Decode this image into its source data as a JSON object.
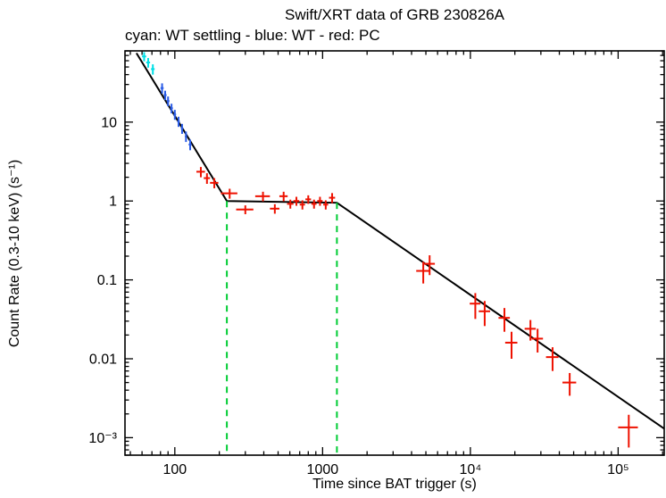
{
  "chart_data": {
    "type": "scatter",
    "title": "Swift/XRT data of GRB 230826A",
    "subtitle": "cyan: WT settling - blue: WT - red: PC",
    "xlabel": "Time since BAT trigger (s)",
    "ylabel": "Count Rate (0.3-10 keV) (s⁻¹)",
    "xscale": "log",
    "yscale": "log",
    "xlim": [
      46,
      205000
    ],
    "ylim": [
      0.0006,
      80
    ],
    "grid": false,
    "legend_position": "subtitle-text",
    "x_axis": {
      "ticks": [
        {
          "value": 100,
          "label": "100"
        },
        {
          "value": 1000,
          "label": "1000"
        },
        {
          "value": 10000,
          "label": "10⁴"
        },
        {
          "value": 100000,
          "label": "10⁵"
        }
      ]
    },
    "y_axis": {
      "ticks": [
        {
          "value": 10,
          "label": "10"
        },
        {
          "value": 1,
          "label": "1"
        },
        {
          "value": 0.1,
          "label": "0.1"
        },
        {
          "value": 0.01,
          "label": "0.01"
        },
        {
          "value": 0.001,
          "label": "10⁻³"
        }
      ]
    },
    "series": [
      {
        "key": "wt-settling",
        "name": "WT settling",
        "color": "#00dfe6",
        "points": [
          [
            62,
            68,
            2,
            9
          ],
          [
            66,
            57,
            2,
            8
          ],
          [
            71,
            47,
            2,
            7
          ]
        ]
      },
      {
        "key": "wt",
        "name": "WT",
        "color": "#2a5ce6",
        "points": [
          [
            82,
            27,
            2,
            4
          ],
          [
            86,
            22,
            2,
            3
          ],
          [
            90,
            18.5,
            2,
            2.6
          ],
          [
            95,
            15,
            2,
            2.1
          ],
          [
            100,
            12.5,
            2,
            1.8
          ],
          [
            106,
            10.2,
            2,
            1.5
          ],
          [
            112,
            8.3,
            2,
            1.2
          ],
          [
            119,
            6.6,
            2,
            1.0
          ],
          [
            127,
            5.2,
            3,
            0.8
          ]
        ]
      },
      {
        "key": "pc",
        "name": "PC",
        "color": "#ee1100",
        "points": [
          [
            150,
            2.35,
            10,
            0.35
          ],
          [
            165,
            1.95,
            8,
            0.3
          ],
          [
            185,
            1.7,
            12,
            0.25
          ],
          [
            235,
            1.25,
            30,
            0.18
          ],
          [
            300,
            0.78,
            40,
            0.1
          ],
          [
            395,
            1.15,
            45,
            0.16
          ],
          [
            475,
            0.8,
            35,
            0.11
          ],
          [
            545,
            1.15,
            35,
            0.16
          ],
          [
            605,
            0.92,
            30,
            0.12
          ],
          [
            665,
            1.0,
            30,
            0.13
          ],
          [
            730,
            0.9,
            30,
            0.12
          ],
          [
            800,
            1.05,
            35,
            0.13
          ],
          [
            875,
            0.92,
            35,
            0.12
          ],
          [
            960,
            1.0,
            40,
            0.13
          ],
          [
            1050,
            0.9,
            40,
            0.12
          ],
          [
            1160,
            1.1,
            55,
            0.16
          ],
          [
            4800,
            0.13,
            500,
            0.04
          ],
          [
            5300,
            0.16,
            450,
            0.045
          ],
          [
            10800,
            0.05,
            900,
            0.018
          ],
          [
            12500,
            0.04,
            1100,
            0.014
          ],
          [
            17000,
            0.033,
            1500,
            0.011
          ],
          [
            19000,
            0.016,
            1800,
            0.006
          ],
          [
            25500,
            0.024,
            2200,
            0.007
          ],
          [
            28500,
            0.018,
            2500,
            0.006
          ],
          [
            36000,
            0.0105,
            3500,
            0.0035
          ],
          [
            47000,
            0.005,
            5000,
            0.0016
          ],
          [
            118000,
            0.00135,
            18000,
            0.0006
          ]
        ]
      }
    ],
    "fit_line": {
      "color": "#000000",
      "points": [
        [
          55,
          75
        ],
        [
          225,
          1.0
        ],
        [
          1250,
          0.95
        ],
        [
          205000,
          0.0013
        ]
      ]
    },
    "break_markers": {
      "color": "#00cc33",
      "style": "dashed",
      "items": [
        {
          "x": 225,
          "y_top": 1.0
        },
        {
          "x": 1250,
          "y_top": 0.95
        }
      ]
    }
  }
}
